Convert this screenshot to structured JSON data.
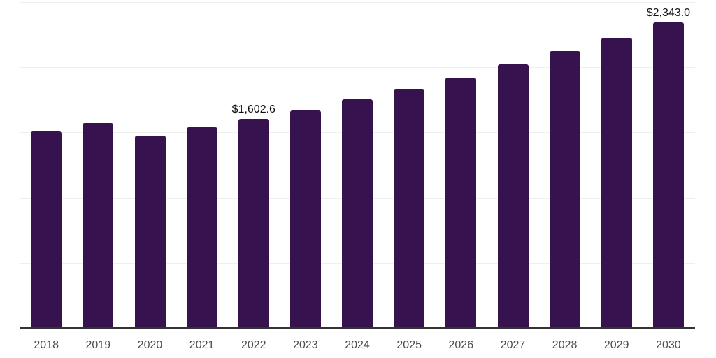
{
  "chart_data": {
    "type": "bar",
    "title": "",
    "xlabel": "",
    "ylabel": "",
    "categories": [
      "2018",
      "2019",
      "2020",
      "2021",
      "2022",
      "2023",
      "2024",
      "2025",
      "2026",
      "2027",
      "2028",
      "2029",
      "2030"
    ],
    "values": [
      1507,
      1574,
      1473,
      1539,
      1602.6,
      1670,
      1753,
      1834,
      1921,
      2019,
      2121,
      2224,
      2343.0
    ],
    "value_labels": [
      "",
      "",
      "",
      "",
      "$1,602.6",
      "",
      "",
      "",
      "",
      "",
      "",
      "",
      "$2,343.0"
    ],
    "ylim": [
      0,
      2500
    ],
    "gridline_values": [
      500,
      1000,
      1500,
      2000,
      2500
    ],
    "grid": "horizontal",
    "legend_position": "none",
    "bar_color": "#36134F",
    "axis_line_color": "#333333",
    "gridline_color": "#efefef",
    "tick_label_color": "#4d4d4d",
    "data_label_color": "#111111"
  }
}
